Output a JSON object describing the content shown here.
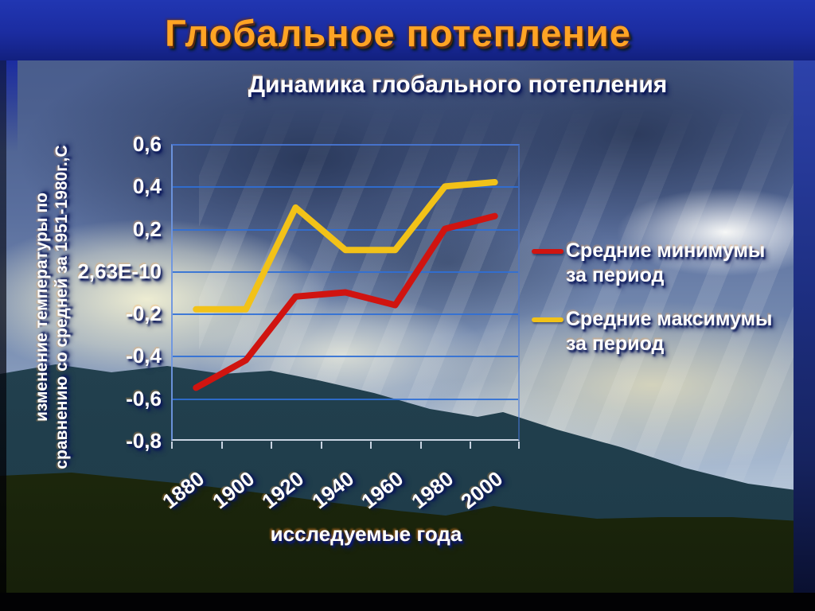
{
  "slide": {
    "title": "Глобальное потепление",
    "subtitle": "Динамика глобального потепления"
  },
  "chart": {
    "y_axis_title_line1": "изменение температуры по",
    "y_axis_title_line2": "сравнению со средней за 1951-1980г.,С",
    "x_axis_title": "исследуемые года",
    "y_ticks": [
      "0,6",
      "0,4",
      "0,2",
      "2,63E-10",
      "-0,2",
      "-0,4",
      "-0,6",
      "-0,8"
    ],
    "x_ticks": [
      "1880",
      "1900",
      "1920",
      "1940",
      "1960",
      "1980",
      "2000"
    ]
  },
  "legend": {
    "items": [
      {
        "label_line1": "Средние минимумы",
        "label_line2": "за период",
        "color": "#d01410"
      },
      {
        "label_line1": "Средние максимумы",
        "label_line2": "за период",
        "color": "#f2c218"
      }
    ]
  },
  "colors": {
    "grid_line": "#2f6fd6",
    "axis_bottom": "#c9d4e2",
    "title_orange": "#ffa424",
    "title_band_blue": "#1b2ca0"
  },
  "chart_data": {
    "type": "line",
    "title": "Динамика глобального потепления",
    "xlabel": "исследуемые года",
    "ylabel": "изменение температуры по сравнению со средней за 1951-1980г.,С",
    "categories": [
      1880,
      1900,
      1920,
      1940,
      1960,
      1980,
      2000
    ],
    "series": [
      {
        "name": "Средние минимумы за период",
        "color": "#d01410",
        "values": [
          -0.55,
          -0.42,
          -0.12,
          -0.1,
          -0.16,
          0.2,
          0.26
        ]
      },
      {
        "name": "Средние максимумы за период",
        "color": "#f2c218",
        "values": [
          -0.18,
          -0.18,
          0.3,
          0.1,
          0.1,
          0.4,
          0.42
        ]
      }
    ],
    "ylim": [
      -0.8,
      0.6
    ],
    "y_tick_step": 0.2,
    "y_zero_tick_label": "2,63E-10",
    "grid": true,
    "legend_position": "right"
  }
}
